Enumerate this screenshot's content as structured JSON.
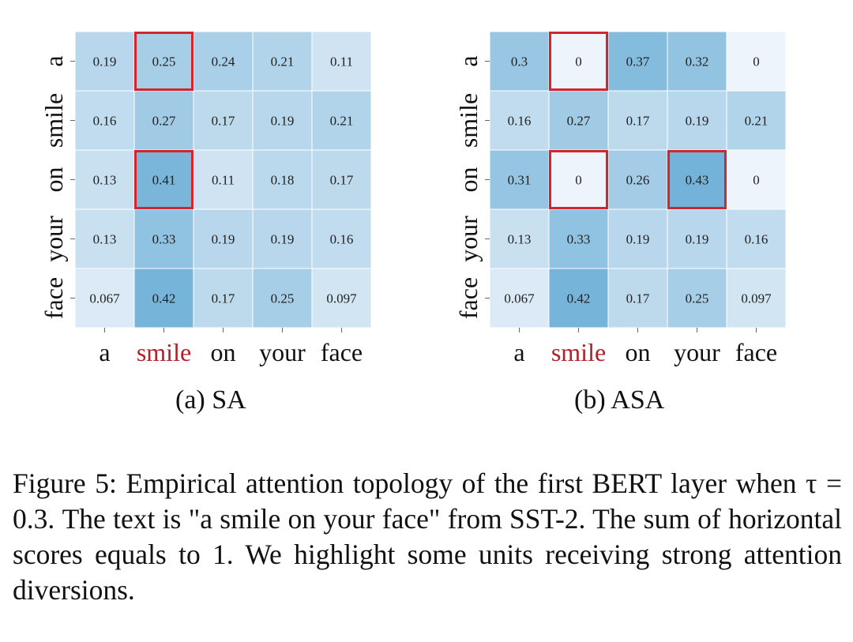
{
  "chart_data": [
    {
      "type": "heatmap",
      "x_tokens": [
        "a",
        "smile",
        "on",
        "your",
        "face"
      ],
      "y_tokens": [
        "a",
        "smile",
        "on",
        "your",
        "face"
      ],
      "highlight_token": "smile",
      "values": [
        [
          0.19,
          0.25,
          0.24,
          0.21,
          0.11
        ],
        [
          0.16,
          0.27,
          0.17,
          0.19,
          0.21
        ],
        [
          0.13,
          0.41,
          0.11,
          0.18,
          0.17
        ],
        [
          0.13,
          0.33,
          0.19,
          0.19,
          0.16
        ],
        [
          0.067,
          0.42,
          0.17,
          0.25,
          0.097
        ]
      ],
      "boxed_cells": [
        [
          0,
          1
        ],
        [
          2,
          1
        ]
      ],
      "colormap": "Blues",
      "value_range": [
        0,
        0.5
      ]
    },
    {
      "type": "heatmap",
      "x_tokens": [
        "a",
        "smile",
        "on",
        "your",
        "face"
      ],
      "y_tokens": [
        "a",
        "smile",
        "on",
        "your",
        "face"
      ],
      "highlight_token": "smile",
      "values": [
        [
          0.3,
          0,
          0.37,
          0.32,
          0
        ],
        [
          0.16,
          0.27,
          0.17,
          0.19,
          0.21
        ],
        [
          0.31,
          0,
          0.26,
          0.43,
          0
        ],
        [
          0.13,
          0.33,
          0.19,
          0.19,
          0.16
        ],
        [
          0.067,
          0.42,
          0.17,
          0.25,
          0.097
        ]
      ],
      "boxed_cells": [
        [
          0,
          1
        ],
        [
          2,
          1
        ],
        [
          2,
          3
        ]
      ],
      "colormap": "Blues",
      "value_range": [
        0,
        0.5
      ]
    }
  ],
  "subcaptions": {
    "sa": "(a) SA",
    "asa": "(b) ASA"
  },
  "caption": {
    "text": "Figure 5: Empirical attention topology of the first BERT layer when τ = 0.3. The text is \"a smile on your face\" from SST-2. The sum of horizontal scores equals to 1. We highlight some units receiving strong attention diversions."
  },
  "colors": {
    "highlight_red": "#b3202a",
    "box_red": "#d2262f",
    "cell_low": "#eef4fb",
    "cell_high": "#5fa8d3"
  }
}
